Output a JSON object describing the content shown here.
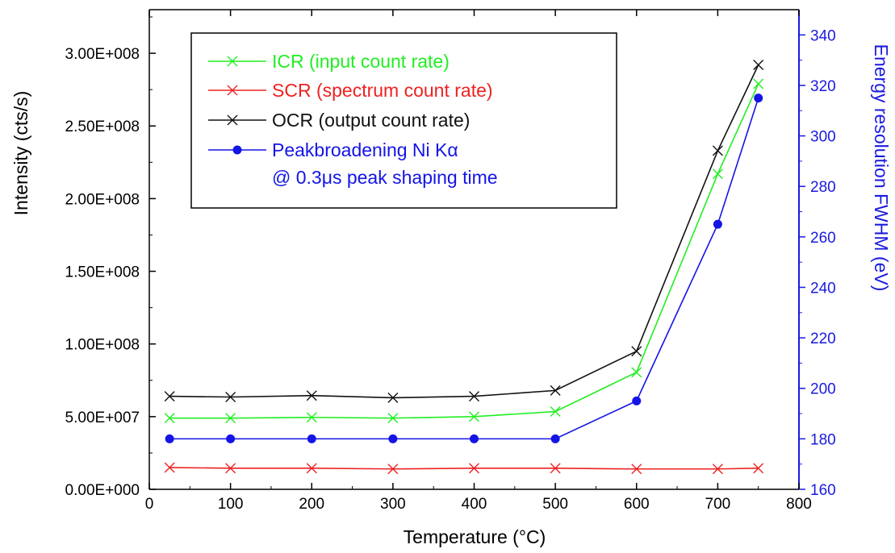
{
  "chart_data": {
    "type": "line",
    "title": "",
    "xlabel": "Temperature (°C)",
    "ylabel": "Intensity (cts/s)",
    "y2label": "Energy resolution FWHM (eV)",
    "xlim": [
      0,
      800
    ],
    "ylim": [
      0,
      330000000
    ],
    "y2lim": [
      160,
      350
    ],
    "x_ticks": [
      "0",
      "100",
      "200",
      "300",
      "400",
      "500",
      "600",
      "700",
      "800"
    ],
    "y_ticks": [
      "0.00E+000",
      "5.00E+007",
      "1.00E+008",
      "1.50E+008",
      "2.00E+008",
      "2.50E+008",
      "3.00E+008"
    ],
    "y2_ticks": [
      "160",
      "180",
      "200",
      "220",
      "240",
      "260",
      "280",
      "300",
      "320",
      "340"
    ],
    "grid": false,
    "legend_position": "top-left",
    "x": [
      25,
      100,
      200,
      300,
      400,
      500,
      600,
      700,
      750
    ],
    "series": [
      {
        "name": "ICR (input count rate)",
        "axis": "left",
        "color": "#22ee22",
        "marker": "x",
        "values": [
          49000000,
          49000000,
          49500000,
          49000000,
          50000000,
          53500000,
          80500000,
          217000000,
          279000000
        ]
      },
      {
        "name": "SCR (spectrum count rate)",
        "axis": "left",
        "color": "#ee2222",
        "marker": "x",
        "values": [
          15000000,
          14500000,
          14500000,
          14000000,
          14500000,
          14500000,
          14000000,
          14000000,
          14500000
        ]
      },
      {
        "name": "OCR (output count rate)",
        "axis": "left",
        "color": "#111111",
        "marker": "x",
        "values": [
          64000000,
          63500000,
          64500000,
          63000000,
          64000000,
          68000000,
          95000000,
          233000000,
          292000000
        ]
      },
      {
        "name": "Peakbroadening Ni Kα",
        "name_line2": "@ 0.3μs peak shaping time",
        "axis": "right",
        "color": "#1414e6",
        "marker": "dot",
        "values": [
          180,
          180,
          180,
          180,
          180,
          180,
          195,
          265,
          315
        ]
      }
    ]
  }
}
